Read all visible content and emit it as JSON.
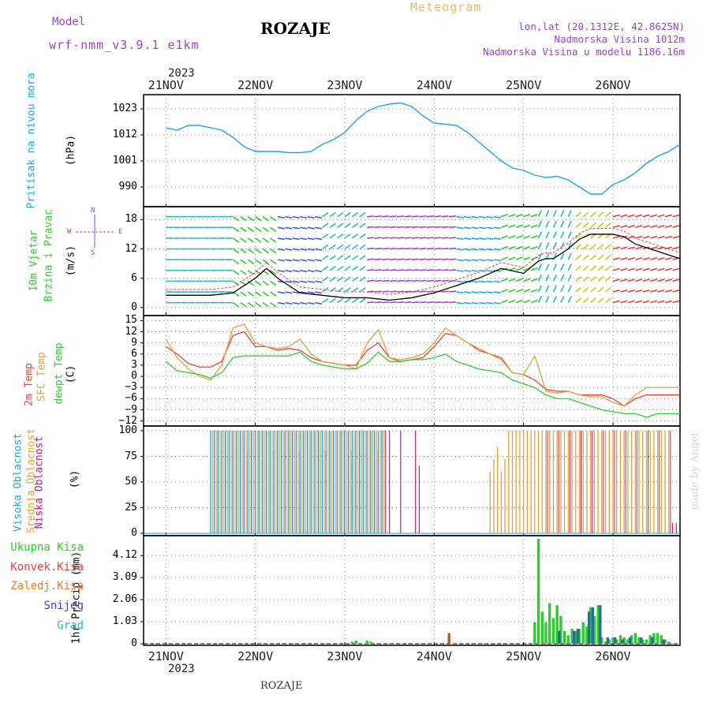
{
  "header": {
    "model_label": "Model",
    "model_name": "wrf-nmm_v3.9.1 e1km",
    "station": "ROZAJE",
    "product": "Meteogram",
    "lonlat": "lon,lat (20.1312E, 42.8625N)",
    "elevation": "Nadmorska Visina 1012m",
    "model_elevation": "Nadmorska Visina u modelu 1186.16m"
  },
  "axis_top": {
    "year": "2023",
    "days": [
      "21NOV",
      "22NOV",
      "23NOV",
      "24NOV",
      "25NOV",
      "26NOV"
    ]
  },
  "axis_bottom": {
    "year": "2023",
    "days": [
      "21NOV",
      "22NOV",
      "23NOV",
      "24NOV",
      "25NOV",
      "26NOV"
    ],
    "footer": "ROZAJE"
  },
  "watermark": "made by Angel",
  "panels": {
    "pressure": {
      "label": "Pritisak na nivou mora",
      "unit": "(hPa)",
      "ticks": [
        "1023",
        "1012",
        "1001",
        "990"
      ]
    },
    "wind": {
      "label1": "10m Vjetar",
      "label2": "Brzina i Pravac",
      "unit": "(m/s)",
      "ticks": [
        "18",
        "12",
        "6",
        "0"
      ],
      "compass": {
        "n": "N",
        "s": "S",
        "w": "W",
        "e": "E"
      }
    },
    "temp": {
      "label1": "2m Temp",
      "label2": "SFC Temp",
      "label3": "dewpt Temp",
      "unit": "(C)",
      "ticks": [
        "15",
        "12",
        "9",
        "6",
        "3",
        "0",
        "−3",
        "−6",
        "−9",
        "−12"
      ]
    },
    "cloud": {
      "label1": "Visoka Oblacnost",
      "label2": "Srednja Oblacnost",
      "label3": "Niska Oblacnost",
      "unit": "(%)",
      "ticks": [
        "100",
        "75",
        "50",
        "25",
        "0"
      ]
    },
    "precip": {
      "unit": "1hr Precip (mm)",
      "ticks": [
        "4.12",
        "3.09",
        "2.06",
        "1.03",
        "0"
      ],
      "legend": [
        "Ukupna Kisa",
        "Konvek.Kisa",
        "Zaledj.Kisa",
        "Snijeg",
        "Grad"
      ]
    }
  },
  "colors": {
    "pressure": "#1aa7e6",
    "temp2m": "#e8413c",
    "sfc": "#e3a23a",
    "dewpt": "#2ecc2e",
    "high_cloud": "#1aa7e6",
    "mid_cloud": "#e3a23a",
    "low_cloud": "#c2187a",
    "total_rain": "#2ecc2e",
    "conv_rain": "#e8413c",
    "frz_rain": "#f07a28",
    "snow": "#4040e0",
    "hail": "#2ab7c0",
    "model": "#a040d0",
    "meteogram": "#e8b860"
  },
  "chart_data": [
    {
      "type": "line",
      "ylabel": "Pritisak na nivou mora (hPa)",
      "ylim": [
        983,
        1027
      ],
      "series": [
        {
          "name": "Pritisak na nivou mora",
          "x": [
            0,
            3,
            6,
            9,
            12,
            15,
            18,
            21,
            24,
            27,
            30,
            33,
            36,
            39,
            42,
            45,
            48,
            51,
            54,
            57,
            60,
            63,
            66,
            69,
            72,
            75,
            78,
            81,
            84,
            87,
            90,
            93,
            96,
            99,
            102,
            105,
            108,
            111,
            114,
            117,
            120,
            123,
            126,
            129,
            132,
            135,
            138
          ],
          "values": [
            1015,
            1014,
            1016,
            1016,
            1015,
            1014,
            1011,
            1007,
            1005,
            1005,
            1005,
            1004.5,
            1004.5,
            1005,
            1008,
            1010,
            1013,
            1018,
            1022,
            1024,
            1025,
            1025.5,
            1024,
            1020,
            1017,
            1016.5,
            1016,
            1013,
            1009,
            1005,
            1001,
            998,
            997,
            995,
            994,
            994.5,
            993,
            990,
            987,
            987,
            991,
            993,
            996,
            1000,
            1003,
            1005,
            1008
          ]
        }
      ],
      "grid": true
    },
    {
      "type": "line",
      "ylabel": "10m Vjetar Brzina i Pravac (m/s)",
      "ylim": [
        -1,
        20
      ],
      "series": [
        {
          "name": "10m Vjetar",
          "x": [
            0,
            6,
            12,
            18,
            24,
            27,
            30,
            36,
            42,
            48,
            54,
            60,
            66,
            72,
            78,
            84,
            90,
            96,
            100,
            102,
            104,
            106,
            108,
            111,
            114,
            117,
            120,
            123,
            126,
            130,
            134,
            138
          ],
          "values": [
            2.5,
            2.5,
            2.5,
            3,
            6,
            8,
            6,
            3,
            2.5,
            2,
            2,
            1.5,
            2,
            3,
            4.5,
            6,
            8,
            7,
            9.5,
            10,
            10,
            11,
            12,
            14,
            15,
            15,
            15,
            14.5,
            13,
            12,
            11,
            10
          ]
        }
      ],
      "grid": true
    },
    {
      "type": "line",
      "ylabel": "Temp (C)",
      "ylim": [
        -12.5,
        15.5
      ],
      "series": [
        {
          "name": "2m Temp",
          "x": [
            0,
            3,
            6,
            9,
            12,
            15,
            18,
            21,
            24,
            27,
            30,
            33,
            36,
            39,
            42,
            45,
            48,
            51,
            54,
            57,
            60,
            63,
            66,
            69,
            72,
            75,
            78,
            81,
            84,
            87,
            90,
            93,
            96,
            99,
            102,
            105,
            108,
            111,
            114,
            117,
            120,
            123,
            126,
            129,
            132,
            135,
            138
          ],
          "values": [
            8,
            6,
            3.5,
            2.5,
            2.5,
            4,
            11,
            12,
            8,
            8,
            7,
            7.5,
            7,
            5,
            4,
            3.5,
            3,
            3,
            7,
            9,
            5,
            4,
            4.5,
            5,
            8,
            11.5,
            11,
            9,
            7,
            6,
            5,
            1,
            0.5,
            -1,
            -3.5,
            -4,
            -4,
            -5,
            -5,
            -5,
            -6,
            -8,
            -6,
            -5,
            -5,
            -5,
            -5
          ]
        },
        {
          "name": "SFC Temp",
          "x": [
            0,
            3,
            6,
            9,
            12,
            15,
            18,
            21,
            24,
            27,
            30,
            33,
            36,
            39,
            42,
            45,
            48,
            51,
            54,
            57,
            60,
            63,
            66,
            69,
            72,
            75,
            78,
            81,
            84,
            87,
            90,
            93,
            96,
            99,
            102,
            105,
            108,
            111,
            114,
            117,
            120,
            123,
            126,
            129,
            132,
            135,
            138
          ],
          "values": [
            10,
            5,
            2,
            0,
            -1,
            3,
            13,
            14,
            9,
            8,
            7.5,
            8,
            10,
            6,
            4,
            3.5,
            3,
            2,
            9,
            12.5,
            5,
            4.5,
            5,
            6,
            9,
            13,
            11,
            9,
            7.5,
            6,
            4.5,
            1,
            0.5,
            5.5,
            -4,
            -4.5,
            -4,
            -5,
            -5.5,
            -5.5,
            -7,
            -8,
            -5,
            -3,
            -3,
            -3,
            -3
          ]
        },
        {
          "name": "dewpt Temp",
          "x": [
            0,
            3,
            6,
            9,
            12,
            15,
            18,
            21,
            24,
            27,
            30,
            33,
            36,
            39,
            42,
            45,
            48,
            51,
            54,
            57,
            60,
            63,
            66,
            69,
            72,
            75,
            78,
            81,
            84,
            87,
            90,
            93,
            96,
            99,
            102,
            105,
            108,
            111,
            114,
            117,
            120,
            123,
            126,
            129,
            132,
            135,
            138
          ],
          "values": [
            4,
            1.5,
            1,
            0.5,
            -0.5,
            1,
            5,
            5.5,
            5.5,
            5.5,
            5.5,
            5.5,
            6.5,
            4,
            3,
            2.5,
            2,
            2,
            3.5,
            6.5,
            4,
            4,
            4.5,
            4.5,
            5,
            6,
            4,
            3,
            2,
            1.5,
            1,
            -1,
            -2,
            -3,
            -5,
            -6,
            -6,
            -7,
            -8,
            -9,
            -9.5,
            -10,
            -10,
            -11,
            -10,
            -10,
            -10
          ]
        }
      ],
      "grid": true
    },
    {
      "type": "bar",
      "ylabel": "Oblacnost (%)",
      "ylim": [
        0,
        100
      ],
      "series": [
        {
          "name": "Visoka Oblacnost",
          "x_range": [
            12,
            58
          ],
          "values": 100
        },
        {
          "name": "Srednja Oblacnost",
          "x_range": [
            87,
            135
          ],
          "values": 100
        },
        {
          "name": "Niska Oblacnost",
          "x_range": [
            12,
            68
          ],
          "values": 100
        }
      ],
      "grid": true
    },
    {
      "type": "bar",
      "ylabel": "1hr Precip (mm)",
      "ylim": [
        0,
        4.9
      ],
      "series": [
        {
          "name": "Ukupna Kisa",
          "x": [
            50,
            51,
            54,
            55,
            99,
            100,
            101,
            102,
            103,
            104,
            105,
            106,
            107,
            108,
            109,
            110,
            111,
            112,
            113,
            114,
            115,
            116,
            117,
            118,
            119,
            120,
            121,
            122,
            123,
            124,
            125,
            126,
            127,
            128,
            129,
            130,
            131,
            132,
            133,
            134,
            135
          ],
          "values": [
            0.1,
            0.15,
            0.15,
            0.1,
            1.0,
            4.9,
            1.5,
            1.0,
            1.9,
            1.2,
            1.8,
            1.3,
            0.6,
            0.4,
            0.7,
            0.6,
            0.7,
            1.0,
            0.8,
            1.7,
            1.3,
            1.8,
            0.3,
            0.1,
            0.2,
            0.3,
            0.2,
            0.4,
            0.3,
            0.2,
            0.4,
            0.5,
            0.3,
            0.2,
            0.2,
            0.4,
            0.5,
            0.5,
            0.4,
            0.2,
            0.1
          ]
        },
        {
          "name": "Zaledj.Kisa",
          "x": [
            76
          ],
          "values": [
            0.5
          ]
        },
        {
          "name": "Snijeg",
          "x": [
            105,
            109,
            110,
            113,
            114,
            116,
            118,
            120,
            122,
            124,
            127,
            130,
            133
          ],
          "values": [
            0.6,
            0.6,
            0.7,
            1.5,
            1.7,
            1.8,
            0.3,
            0.3,
            0.2,
            0.3,
            0.3,
            0.3,
            0.2
          ]
        }
      ],
      "grid": true
    }
  ]
}
